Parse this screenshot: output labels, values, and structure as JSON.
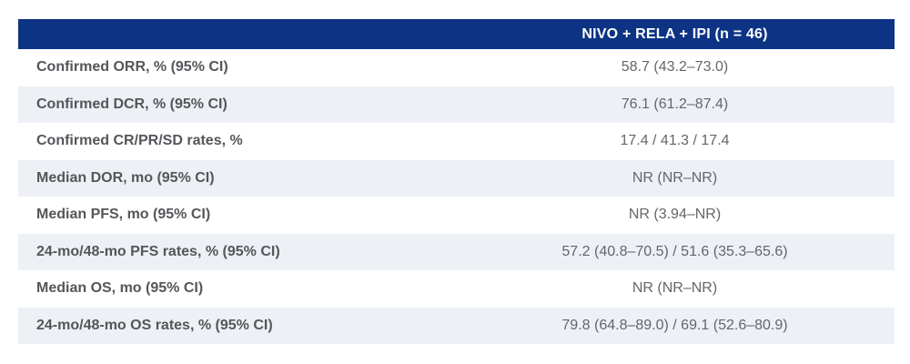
{
  "chart_data": {
    "type": "table",
    "columns": [
      "",
      "NIVO + RELA + IPI (n = 46)"
    ],
    "rows": [
      [
        "Confirmed ORR, % (95% CI)",
        "58.7 (43.2–73.0)"
      ],
      [
        "Confirmed DCR, % (95% CI)",
        "76.1 (61.2–87.4)"
      ],
      [
        "Confirmed CR/PR/SD rates, %",
        "17.4 / 41.3 / 17.4"
      ],
      [
        "Median DOR, mo (95% CI)",
        "NR (NR–NR)"
      ],
      [
        "Median PFS, mo (95% CI)",
        "NR (3.94–NR)"
      ],
      [
        "24-mo/48-mo PFS rates, % (95% CI)",
        "57.2 (40.8–70.5) / 51.6 (35.3–65.6)"
      ],
      [
        "Median OS, mo (95% CI)",
        "NR (NR–NR)"
      ],
      [
        "24-mo/48-mo OS rates, % (95% CI)",
        "79.8 (64.8–89.0) / 69.1 (52.6–80.9)"
      ]
    ],
    "layout": {
      "striped": true,
      "striped_rows": "even",
      "header_alignment": "center",
      "label_alignment": "left",
      "value_alignment": "center",
      "grid": false
    }
  },
  "colors": {
    "page_bg": "#ffffff",
    "header_bg": "#0d3384",
    "header_text": "#ffffff",
    "stripe_bg": "#edf0f5",
    "label_text": "#55565a",
    "value_text": "#63666a"
  }
}
